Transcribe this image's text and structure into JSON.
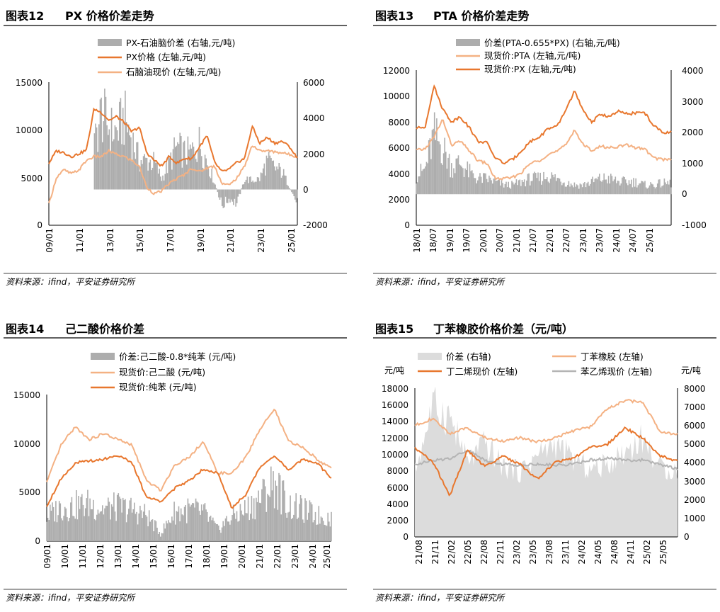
{
  "panels": [
    {
      "figure_no": "图表12",
      "title": "PX 价格价差走势",
      "source": "资料来源：ifind，平安证券研究所",
      "left_ticks": [
        "15000",
        "10000",
        "5000",
        "0"
      ],
      "right_ticks": [
        "6000",
        "4000",
        "2000",
        "0",
        "-2000"
      ],
      "x_ticks": [
        "09/01",
        "11/01",
        "13/01",
        "15/01",
        "17/01",
        "19/01",
        "21/01",
        "23/01",
        "25/01"
      ],
      "legend": [
        "PX-石油脑价差 (右轴,元/吨)",
        "PX价格 (左轴,元/吨)",
        "石脑油现价 (左轴,元/吨)"
      ]
    },
    {
      "figure_no": "图表13",
      "title": "PTA 价格价差走势",
      "source": "资料来源：ifind，平安证券研究所",
      "left_ticks": [
        "12000",
        "10000",
        "8000",
        "6000",
        "4000",
        "2000",
        "0"
      ],
      "right_ticks": [
        "4000",
        "3000",
        "2000",
        "1000",
        "0",
        "-1000"
      ],
      "x_ticks": [
        "18/01",
        "18/07",
        "19/01",
        "19/07",
        "20/01",
        "20/07",
        "21/01",
        "21/07",
        "22/01",
        "22/07",
        "23/01",
        "23/07",
        "24/01",
        "24/07",
        "25/01"
      ],
      "legend": [
        "价差(PTA-0.655*PX) (右轴,元/吨)",
        "现货价:PTA (左轴,元/吨)",
        "现货价:PX (左轴,元/吨)"
      ]
    },
    {
      "figure_no": "图表14",
      "title": "己二酸价格价差",
      "source": "资料来源：ifind，平安证券研究所",
      "left_ticks": [
        "15000",
        "10000",
        "5000",
        "0"
      ],
      "x_ticks": [
        "09/01",
        "10/01",
        "11/01",
        "12/01",
        "13/01",
        "14/01",
        "15/01",
        "16/01",
        "17/01",
        "18/01",
        "19/01",
        "20/01",
        "21/01",
        "22/01",
        "23/01",
        "24/01",
        "25/01"
      ],
      "legend": [
        "价差:己二酸-0.8*纯苯 (元/吨)",
        "现货价:己二酸 (元/吨)",
        "现货价:纯苯 (元/吨)"
      ]
    },
    {
      "figure_no": "图表15",
      "title": "丁苯橡胶价格价差（元/吨）",
      "source": "资料来源：ifind，平安证券研究所",
      "left_unit": "元/吨",
      "right_unit": "元/吨",
      "left_ticks": [
        "18000",
        "16000",
        "14000",
        "12000",
        "10000",
        "8000",
        "6000",
        "4000",
        "2000",
        "0"
      ],
      "right_ticks": [
        "8000",
        "7000",
        "6000",
        "5000",
        "4000",
        "3000",
        "2000",
        "1000",
        "0"
      ],
      "x_ticks": [
        "21/08",
        "21/11",
        "22/02",
        "22/05",
        "22/08",
        "22/11",
        "23/02",
        "23/05",
        "23/08",
        "23/11",
        "24/02",
        "24/05",
        "24/08",
        "24/11",
        "25/02",
        "25/05"
      ],
      "legend": [
        "价差 (右轴)",
        "丁苯橡胶 (左轴)",
        "丁二烯现价 (左轴)",
        "苯乙烯现价 (左轴)"
      ]
    }
  ],
  "colors": {
    "spread_gray": "#adadad",
    "spread_light": "#dcdcdc",
    "orange_dark": "#e8772e",
    "orange_light": "#f4b183",
    "line_gray": "#b4b4b4"
  },
  "chart_data": [
    {
      "type": "line",
      "title": "PX 价格价差走势",
      "ylim": [
        0,
        15000
      ],
      "y2lim": [
        -2000,
        6000
      ],
      "x": [
        "2009-01",
        "2009-07",
        "2010-01",
        "2010-07",
        "2011-01",
        "2011-07",
        "2012-01",
        "2012-07",
        "2013-01",
        "2013-07",
        "2014-01",
        "2014-07",
        "2015-01",
        "2015-07",
        "2016-01",
        "2016-07",
        "2017-01",
        "2017-07",
        "2018-01",
        "2018-07",
        "2019-01",
        "2019-07",
        "2020-01",
        "2020-07",
        "2021-01",
        "2021-07",
        "2022-01",
        "2022-07",
        "2023-01",
        "2023-07",
        "2024-01",
        "2024-07",
        "2025-01",
        "2025-05"
      ],
      "series": [
        {
          "name": "PX-石油脑价差 (右轴,元/吨)",
          "axis": "right",
          "values": [
            null,
            null,
            null,
            null,
            null,
            null,
            2400,
            4300,
            3400,
            3200,
            4000,
            2900,
            1600,
            1600,
            1500,
            600,
            1500,
            2400,
            2000,
            2100,
            2600,
            1600,
            400,
            -900,
            -500,
            -800,
            600,
            500,
            600,
            1600,
            1200,
            1000,
            100,
            -800
          ]
        },
        {
          "name": "PX价格 (左轴,元/吨)",
          "axis": "left",
          "values": [
            6500,
            7800,
            7600,
            7200,
            7500,
            7900,
            12200,
            11800,
            11000,
            11400,
            10800,
            9800,
            10300,
            7600,
            6800,
            6200,
            7200,
            6500,
            7000,
            7000,
            8200,
            9400,
            6600,
            5600,
            5900,
            6600,
            7000,
            10400,
            8600,
            9200,
            8600,
            8800,
            8200,
            7000
          ]
        },
        {
          "name": "石脑油现价 (左轴,元/吨)",
          "axis": "left",
          "values": [
            2200,
            5000,
            5800,
            5400,
            5800,
            6800,
            7200,
            7200,
            7800,
            7400,
            7200,
            6800,
            6200,
            4000,
            3300,
            3600,
            4400,
            4900,
            5300,
            6000,
            5600,
            6000,
            6200,
            4400,
            4200,
            5000,
            6200,
            8400,
            7800,
            7800,
            7700,
            7600,
            7400,
            7200
          ]
        }
      ]
    },
    {
      "type": "line",
      "title": "PTA 价格价差走势",
      "ylim": [
        0,
        12000
      ],
      "y2lim": [
        -1000,
        4000
      ],
      "x": [
        "2018-01",
        "2018-04",
        "2018-07",
        "2018-10",
        "2019-01",
        "2019-04",
        "2019-07",
        "2019-10",
        "2020-01",
        "2020-04",
        "2020-07",
        "2020-10",
        "2021-01",
        "2021-04",
        "2021-07",
        "2021-10",
        "2022-01",
        "2022-04",
        "2022-07",
        "2022-10",
        "2023-01",
        "2023-04",
        "2023-07",
        "2023-10",
        "2024-01",
        "2024-04",
        "2024-07",
        "2024-10",
        "2025-01",
        "2025-05"
      ],
      "series": [
        {
          "name": "价差(PTA-0.655*PX) (右轴,元/吨)",
          "axis": "right",
          "values": [
            600,
            800,
            1900,
            1500,
            900,
            1000,
            700,
            500,
            500,
            400,
            300,
            300,
            400,
            500,
            500,
            600,
            500,
            400,
            300,
            300,
            400,
            500,
            500,
            400,
            400,
            400,
            300,
            300,
            350,
            350
          ]
        },
        {
          "name": "现货价:PTA (左轴,元/吨)",
          "axis": "left",
          "values": [
            5800,
            5900,
            6800,
            8200,
            6200,
            6500,
            5800,
            5000,
            4800,
            3600,
            3600,
            3700,
            4100,
            4800,
            5000,
            5500,
            5700,
            6200,
            7400,
            6200,
            5800,
            6100,
            6000,
            6100,
            6200,
            6000,
            5900,
            5200,
            5100,
            5100
          ]
        },
        {
          "name": "现货价:PX (左轴,元/吨)",
          "axis": "left",
          "values": [
            7500,
            7600,
            10800,
            9000,
            8000,
            8400,
            7600,
            6500,
            6400,
            5200,
            4800,
            5100,
            5800,
            6500,
            6800,
            7500,
            7600,
            8900,
            10400,
            8800,
            8000,
            8600,
            8400,
            8800,
            8600,
            8700,
            8700,
            7700,
            7200,
            7200
          ]
        }
      ]
    },
    {
      "type": "line",
      "title": "己二酸价格价差",
      "ylim": [
        0,
        15000
      ],
      "x": [
        "2009-01",
        "2010-01",
        "2011-01",
        "2012-01",
        "2013-01",
        "2014-01",
        "2015-01",
        "2015-07",
        "2016-01",
        "2017-01",
        "2018-01",
        "2019-01",
        "2020-01",
        "2020-10",
        "2021-01",
        "2021-07",
        "2022-01",
        "2023-01",
        "2024-01",
        "2025-01",
        "2025-05"
      ],
      "series": [
        {
          "name": "价差:己二酸-0.8*纯苯 (元/吨)",
          "axis": "left",
          "values": [
            2500,
            3500,
            3600,
            3800,
            3300,
            3500,
            3200,
            2700,
            800,
            3000,
            3200,
            3000,
            1200,
            2500,
            3200,
            4400,
            6000,
            3600,
            3200,
            2600,
            2400
          ]
        },
        {
          "name": "现货价:己二酸 (元/吨)",
          "axis": "left",
          "values": [
            6000,
            9800,
            11700,
            10400,
            11000,
            10400,
            9800,
            6200,
            5200,
            7800,
            8600,
            10200,
            7000,
            6900,
            8600,
            11500,
            13500,
            10200,
            9600,
            8400,
            7400
          ]
        },
        {
          "name": "现货价:纯苯 (元/吨)",
          "axis": "left",
          "values": [
            3600,
            6400,
            8000,
            8200,
            8400,
            8800,
            8000,
            4500,
            4100,
            5400,
            6200,
            7400,
            7000,
            3400,
            4800,
            7600,
            8800,
            7200,
            8400,
            8000,
            6400
          ]
        }
      ]
    },
    {
      "type": "line",
      "title": "丁苯橡胶价格价差（元/吨）",
      "ylim": [
        0,
        18000
      ],
      "y2lim": [
        0,
        8000
      ],
      "x": [
        "2021-08",
        "2021-11",
        "2022-02",
        "2022-05",
        "2022-08",
        "2022-11",
        "2023-02",
        "2023-05",
        "2023-08",
        "2023-11",
        "2024-02",
        "2024-05",
        "2024-08",
        "2024-11",
        "2025-02",
        "2025-05"
      ],
      "series": [
        {
          "name": "价差 (右轴)",
          "axis": "right",
          "values": [
            3500,
            7000,
            6500,
            4000,
            5000,
            3800,
            3500,
            4400,
            5000,
            4200,
            3600,
            3900,
            4600,
            5300,
            3700,
            3600
          ]
        },
        {
          "name": "丁苯橡胶 (左轴)",
          "axis": "left",
          "values": [
            13500,
            14300,
            12500,
            13200,
            12000,
            11600,
            12000,
            11500,
            12000,
            12800,
            13300,
            15500,
            16500,
            16300,
            12800,
            12400
          ]
        },
        {
          "name": "丁二烯现价 (左轴)",
          "axis": "left",
          "values": [
            10700,
            9200,
            5000,
            10500,
            8500,
            9800,
            8800,
            7000,
            9000,
            9500,
            10800,
            11200,
            13200,
            12000,
            9800,
            9200
          ]
        },
        {
          "name": "苯乙烯现价 (左轴)",
          "axis": "left",
          "values": [
            8800,
            9200,
            9500,
            10500,
            9300,
            8800,
            8700,
            8800,
            8700,
            8800,
            9300,
            9500,
            9300,
            9300,
            8800,
            8200
          ]
        }
      ]
    }
  ]
}
